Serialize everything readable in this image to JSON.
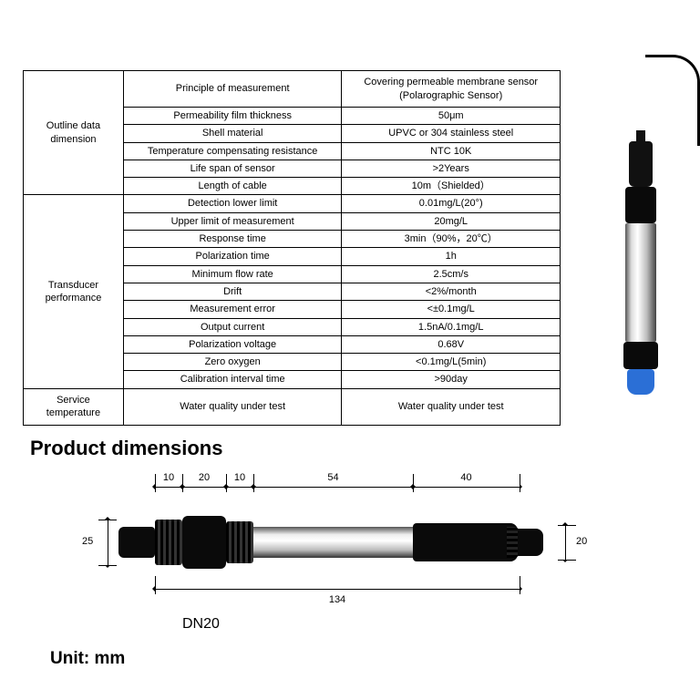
{
  "table": {
    "groups": [
      {
        "label": "Outline data dimension",
        "header": {
          "param": "Principle of measurement",
          "value": "Covering permeable membrane sensor (Polarographic Sensor)"
        },
        "rows": [
          {
            "param": "Permeability film thickness",
            "value": "50μm"
          },
          {
            "param": "Shell material",
            "value": "UPVC or 304 stainless steel"
          },
          {
            "param": "Temperature compensating resistance",
            "value": "NTC 10K"
          },
          {
            "param": "Life span of sensor",
            "value": ">2Years"
          },
          {
            "param": "Length of cable",
            "value": "10m（Shielded）"
          }
        ]
      },
      {
        "label": "Transducer performance",
        "rows": [
          {
            "param": "Detection lower limit",
            "value": "0.01mg/L(20°)"
          },
          {
            "param": "Upper limit of measurement",
            "value": "20mg/L"
          },
          {
            "param": "Response time",
            "value": "3min（90%，20℃）"
          },
          {
            "param": "Polarization time",
            "value": "1h"
          },
          {
            "param": "Minimum flow rate",
            "value": "2.5cm/s"
          },
          {
            "param": "Drift",
            "value": "<2%/month"
          },
          {
            "param": "Measurement error",
            "value": "<±0.1mg/L"
          },
          {
            "param": "Output current",
            "value": "1.5nA/0.1mg/L"
          },
          {
            "param": "Polarization voltage",
            "value": "0.68V"
          },
          {
            "param": "Zero oxygen",
            "value": "<0.1mg/L(5min)"
          },
          {
            "param": "Calibration interval time",
            "value": ">90day"
          }
        ]
      },
      {
        "label": "Service temperature",
        "rows": [
          {
            "param": "Water quality under test",
            "value": "Water quality under test"
          }
        ]
      }
    ]
  },
  "pd": {
    "title": "Product dimensions",
    "unit": "Unit: mm",
    "dn": "DN20",
    "top_segments": [
      {
        "label": "10",
        "start": 0,
        "end": 30
      },
      {
        "label": "20",
        "start": 30,
        "end": 78
      },
      {
        "label": "10",
        "start": 78,
        "end": 108
      },
      {
        "label": "54",
        "start": 108,
        "end": 283
      },
      {
        "label": "40",
        "start": 283,
        "end": 400
      }
    ],
    "overall": {
      "label": "134",
      "start": 0,
      "end": 400
    },
    "left_h": "25",
    "right_h": "20"
  }
}
